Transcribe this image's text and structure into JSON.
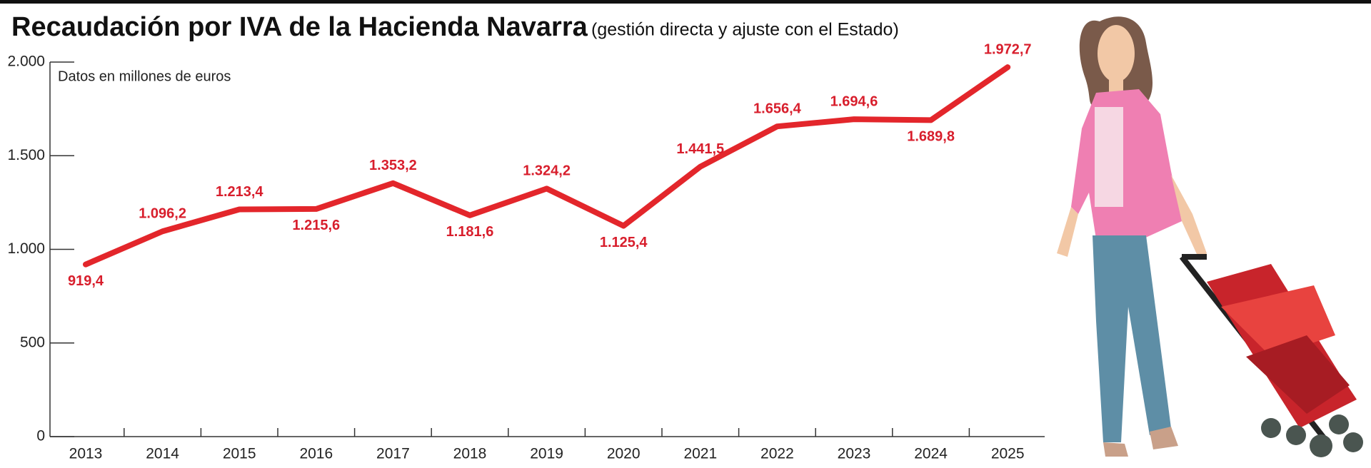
{
  "chart_data": {
    "type": "line",
    "title": "Recaudación por IVA de la Hacienda Navarra",
    "subtitle": "(gestión directa y ajuste con el Estado)",
    "annotation": "Datos en millones de euros",
    "categories": [
      "2013",
      "2014",
      "2015",
      "2016",
      "2017",
      "2018",
      "2019",
      "2020",
      "2021",
      "2022",
      "2023",
      "2024",
      "2025"
    ],
    "series": [
      {
        "name": "Recaudación por IVA",
        "color": "#e3262b",
        "values": [
          919.4,
          1096.2,
          1213.4,
          1215.6,
          1353.2,
          1181.6,
          1324.2,
          1125.4,
          1441.5,
          1656.4,
          1694.6,
          1689.8,
          1972.7
        ],
        "value_labels": [
          "919,4",
          "1.096,2",
          "1.213,4",
          "1.215,6",
          "1.353,2",
          "1.181,6",
          "1.324,2",
          "1.125,4",
          "1.441,5",
          "1.656,4",
          "1.694,6",
          "1.689,8",
          "1.972,7"
        ]
      }
    ],
    "ylim": [
      0,
      2000
    ],
    "yticks": [
      0,
      500,
      {
        "value": 1000,
        "label": "1.000"
      },
      {
        "value": 1500,
        "label": "1.500"
      },
      {
        "value": 2000,
        "label": "2.000"
      }
    ],
    "grid": false
  }
}
